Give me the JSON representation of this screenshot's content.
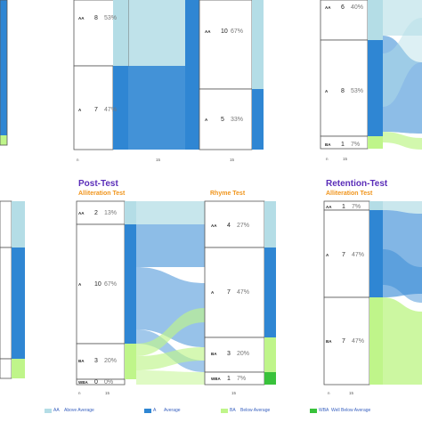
{
  "titles": {
    "post": "Post-Test",
    "retention": "Retention-Test",
    "alliteration": "Alliteration Test",
    "rhyme": "Rhyme Test"
  },
  "colors": {
    "AA": "#b4dde6",
    "A": "#2f86d3",
    "BA": "#bff58a",
    "WBA": "#39c23b",
    "border": "#555555",
    "title": "#5a2db8",
    "subtitle": "#f0951c"
  },
  "legend": [
    {
      "code": "AA",
      "label": "Above Average",
      "color": "#b4dde6"
    },
    {
      "code": "A",
      "label": "Average",
      "color": "#2f86d3"
    },
    {
      "code": "BA",
      "label": "Below Average",
      "color": "#bff58a"
    },
    {
      "code": "WBA",
      "label": "Well Below Average",
      "color": "#39c23b"
    }
  ],
  "panels": [
    {
      "id": "top-middle",
      "axis": [
        "n",
        "15",
        "15"
      ],
      "left_nodes": [
        {
          "code": "AA",
          "count": "8",
          "pct": "53%"
        },
        {
          "code": "A",
          "count": "7",
          "pct": "47%"
        }
      ],
      "right_nodes": [
        {
          "code": "AA",
          "count": "10",
          "pct": "67%"
        },
        {
          "code": "A",
          "count": "5",
          "pct": "33%"
        }
      ]
    },
    {
      "id": "top-right",
      "axis": [
        "n",
        "15"
      ],
      "left_nodes": [
        {
          "code": "AA",
          "count": "6",
          "pct": "40%"
        },
        {
          "code": "A",
          "count": "8",
          "pct": "53%"
        },
        {
          "code": "BA",
          "count": "1",
          "pct": "7%"
        }
      ],
      "right_nodes": []
    },
    {
      "id": "post-test",
      "axis": [
        "n",
        "15",
        "15"
      ],
      "left_nodes": [
        {
          "code": "AA",
          "count": "2",
          "pct": "13%"
        },
        {
          "code": "A",
          "count": "10",
          "pct": "67%"
        },
        {
          "code": "BA",
          "count": "3",
          "pct": "20%"
        },
        {
          "code": "WBA",
          "count": "0",
          "pct": "0%"
        }
      ],
      "right_nodes": [
        {
          "code": "AA",
          "count": "4",
          "pct": "27%"
        },
        {
          "code": "A",
          "count": "7",
          "pct": "47%"
        },
        {
          "code": "BA",
          "count": "3",
          "pct": "20%"
        },
        {
          "code": "WBA",
          "count": "1",
          "pct": "7%"
        }
      ]
    },
    {
      "id": "retention-test",
      "axis": [
        "n",
        "15"
      ],
      "left_nodes": [
        {
          "code": "AA",
          "count": "1",
          "pct": "7%"
        },
        {
          "code": "A",
          "count": "7",
          "pct": "47%"
        },
        {
          "code": "BA",
          "count": "7",
          "pct": "47%"
        }
      ],
      "right_nodes": []
    }
  ]
}
